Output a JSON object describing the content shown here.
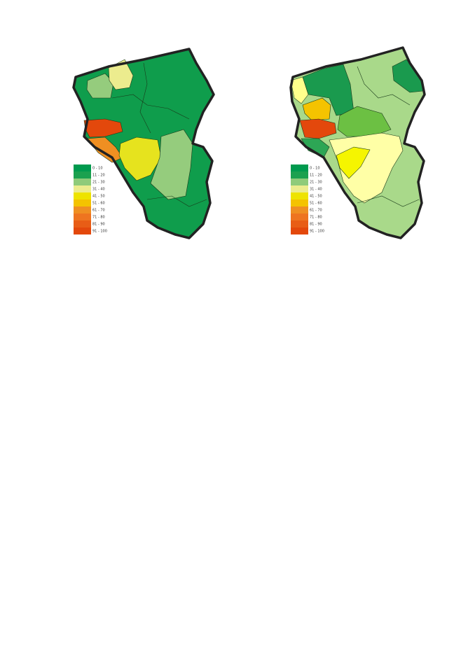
{
  "maps": [
    {
      "legend": [
        {
          "label": "0 - 10",
          "color": "#009a4e"
        },
        {
          "label": "11 - 20",
          "color": "#1ba14f"
        },
        {
          "label": "21 - 30",
          "color": "#8fcb7a"
        },
        {
          "label": "31 - 40",
          "color": "#ecec8e"
        },
        {
          "label": "41 - 50",
          "color": "#eee300"
        },
        {
          "label": "51 - 60",
          "color": "#f4c300"
        },
        {
          "label": "61 - 70",
          "color": "#ef8f22"
        },
        {
          "label": "71 - 80",
          "color": "#ee7420"
        },
        {
          "label": "81 - 90",
          "color": "#e85d16"
        },
        {
          "label": "91 - 100",
          "color": "#e3480c"
        }
      ]
    },
    {
      "legend": [
        {
          "label": "0 - 10",
          "color": "#009a4e"
        },
        {
          "label": "11 - 20",
          "color": "#1ba14f"
        },
        {
          "label": "21 - 30",
          "color": "#8fcb7a"
        },
        {
          "label": "31 - 40",
          "color": "#ecec8e"
        },
        {
          "label": "41 - 50",
          "color": "#eee300"
        },
        {
          "label": "51 - 60",
          "color": "#f4c300"
        },
        {
          "label": "61 - 70",
          "color": "#ef8f22"
        },
        {
          "label": "71 - 80",
          "color": "#ee7420"
        },
        {
          "label": "81 - 90",
          "color": "#e85d16"
        },
        {
          "label": "91 - 100",
          "color": "#e3480c"
        }
      ]
    }
  ]
}
